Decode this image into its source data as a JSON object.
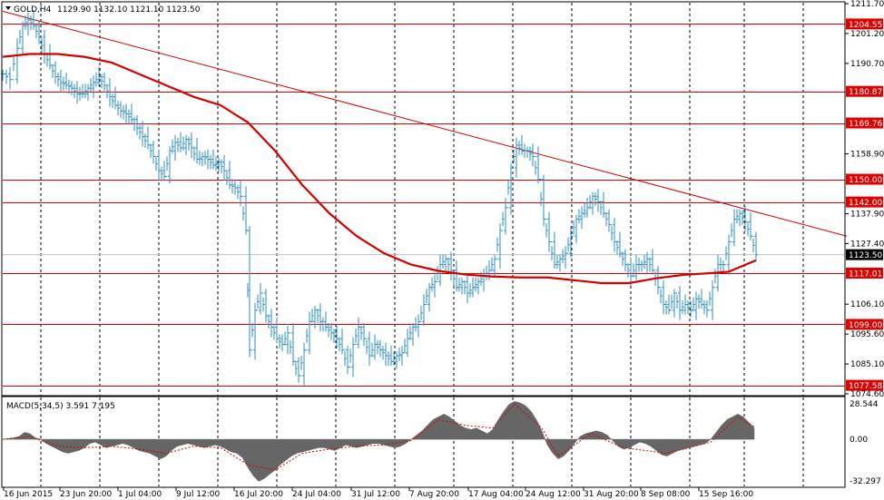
{
  "chart_window": {
    "symbol_label": "GOLD,H4",
    "ohlc": "1129.90 1132.10 1121.10 1123.50",
    "collapse_icon": "triangle-down-icon"
  },
  "colors": {
    "candle": "#2f8fc0",
    "ma": "#d40000",
    "level": "#e00000",
    "trendline": "#d40000",
    "grid": "#000000",
    "histogram": "#666666",
    "signal": "#d40000",
    "tag_bg": "#e00000",
    "tag_text": "#ffffff",
    "price_tag_bg": "#000000"
  },
  "macd": {
    "label": "MACD(5,34,5) 3.591 7.195",
    "axis_labels": [
      "28.544",
      "0.00",
      "-32.297"
    ]
  },
  "chart_data": {
    "type": "line",
    "title": "GOLD,H4",
    "price_axis_labels": [
      "1211.70",
      "1201.20",
      "1190.70",
      "1180.87",
      "1169.76",
      "1158.90",
      "1150.00",
      "1142.00",
      "1137.90",
      "1127.40",
      "1123.50",
      "1117.01",
      "1106.10",
      "1099.00",
      "1095.60",
      "1085.10",
      "1077.58",
      "1074.60"
    ],
    "ylim": [
      1074.6,
      1211.7
    ],
    "levels": [
      {
        "label": "1204.55",
        "value": 1204.55
      },
      {
        "label": "1180.87",
        "value": 1180.87
      },
      {
        "label": "1169.76",
        "value": 1169.76
      },
      {
        "label": "1150.00",
        "value": 1150.0
      },
      {
        "label": "1142.00",
        "value": 1142.0
      },
      {
        "label": "1117.01",
        "value": 1117.01
      },
      {
        "label": "1099.00",
        "value": 1099.0
      },
      {
        "label": "1077.58",
        "value": 1077.58
      }
    ],
    "current_price": {
      "label": "1123.50",
      "value": 1123.5
    },
    "x_labels": [
      "16 Jun 2015",
      "23 Jun 20:00",
      "1 Jul 04:00",
      "9 Jul 12:00",
      "16 Jul 20:00",
      "24 Jul 04:00",
      "31 Jul 12:00",
      "7 Aug 20:00",
      "17 Aug 04:00",
      "24 Aug 12:00",
      "31 Aug 20:00",
      "8 Sep 08:00",
      "15 Sep 16:00"
    ],
    "close_path": [
      [
        0,
        1187
      ],
      [
        8,
        1185
      ],
      [
        16,
        1196
      ],
      [
        22,
        1204
      ],
      [
        28,
        1206
      ],
      [
        34,
        1204
      ],
      [
        40,
        1200
      ],
      [
        46,
        1194
      ],
      [
        52,
        1190
      ],
      [
        58,
        1186
      ],
      [
        64,
        1184
      ],
      [
        70,
        1183
      ],
      [
        76,
        1182
      ],
      [
        82,
        1180
      ],
      [
        88,
        1180
      ],
      [
        94,
        1182
      ],
      [
        100,
        1184
      ],
      [
        106,
        1186
      ],
      [
        112,
        1183
      ],
      [
        118,
        1179
      ],
      [
        124,
        1176
      ],
      [
        130,
        1174
      ],
      [
        136,
        1173
      ],
      [
        142,
        1171
      ],
      [
        148,
        1168
      ],
      [
        154,
        1165
      ],
      [
        160,
        1162
      ],
      [
        166,
        1158
      ],
      [
        172,
        1153
      ],
      [
        178,
        1151
      ],
      [
        184,
        1160
      ],
      [
        190,
        1163
      ],
      [
        196,
        1161
      ],
      [
        202,
        1164
      ],
      [
        208,
        1161
      ],
      [
        214,
        1157
      ],
      [
        220,
        1158
      ],
      [
        226,
        1157
      ],
      [
        232,
        1155
      ],
      [
        238,
        1156
      ],
      [
        244,
        1153
      ],
      [
        250,
        1148
      ],
      [
        256,
        1147
      ],
      [
        262,
        1144
      ],
      [
        268,
        1132
      ],
      [
        272,
        1090
      ],
      [
        278,
        1104
      ],
      [
        284,
        1110
      ],
      [
        290,
        1102
      ],
      [
        296,
        1098
      ],
      [
        302,
        1094
      ],
      [
        308,
        1092
      ],
      [
        314,
        1096
      ],
      [
        320,
        1086
      ],
      [
        326,
        1081
      ],
      [
        332,
        1090
      ],
      [
        338,
        1100
      ],
      [
        344,
        1104
      ],
      [
        350,
        1100
      ],
      [
        356,
        1098
      ],
      [
        362,
        1096
      ],
      [
        368,
        1094
      ],
      [
        374,
        1090
      ],
      [
        380,
        1084
      ],
      [
        386,
        1092
      ],
      [
        392,
        1098
      ],
      [
        398,
        1094
      ],
      [
        404,
        1088
      ],
      [
        410,
        1092
      ],
      [
        416,
        1090
      ],
      [
        422,
        1088
      ],
      [
        428,
        1086
      ],
      [
        434,
        1088
      ],
      [
        440,
        1089
      ],
      [
        446,
        1094
      ],
      [
        452,
        1098
      ],
      [
        458,
        1100
      ],
      [
        464,
        1106
      ],
      [
        470,
        1112
      ],
      [
        476,
        1114
      ],
      [
        482,
        1120
      ],
      [
        488,
        1122
      ],
      [
        494,
        1118
      ],
      [
        500,
        1112
      ],
      [
        506,
        1114
      ],
      [
        512,
        1110
      ],
      [
        518,
        1112
      ],
      [
        524,
        1114
      ],
      [
        530,
        1116
      ],
      [
        536,
        1118
      ],
      [
        542,
        1122
      ],
      [
        548,
        1132
      ],
      [
        554,
        1140
      ],
      [
        560,
        1154
      ],
      [
        566,
        1162
      ],
      [
        572,
        1160
      ],
      [
        578,
        1160
      ],
      [
        584,
        1158
      ],
      [
        590,
        1150
      ],
      [
        596,
        1136
      ],
      [
        602,
        1128
      ],
      [
        608,
        1120
      ],
      [
        614,
        1122
      ],
      [
        620,
        1124
      ],
      [
        626,
        1130
      ],
      [
        632,
        1136
      ],
      [
        638,
        1138
      ],
      [
        644,
        1140
      ],
      [
        650,
        1144
      ],
      [
        656,
        1142
      ],
      [
        662,
        1138
      ],
      [
        668,
        1134
      ],
      [
        674,
        1128
      ],
      [
        680,
        1124
      ],
      [
        686,
        1120
      ],
      [
        692,
        1116
      ],
      [
        698,
        1120
      ],
      [
        704,
        1120
      ],
      [
        710,
        1122
      ],
      [
        716,
        1118
      ],
      [
        722,
        1112
      ],
      [
        728,
        1106
      ],
      [
        734,
        1104
      ],
      [
        740,
        1110
      ],
      [
        746,
        1104
      ],
      [
        752,
        1106
      ],
      [
        758,
        1104
      ],
      [
        764,
        1108
      ],
      [
        770,
        1106
      ],
      [
        776,
        1104
      ],
      [
        782,
        1112
      ],
      [
        788,
        1120
      ],
      [
        794,
        1120
      ],
      [
        800,
        1128
      ],
      [
        806,
        1136
      ],
      [
        812,
        1138
      ],
      [
        818,
        1135
      ],
      [
        824,
        1130
      ],
      [
        830,
        1123.5
      ]
    ],
    "ma_path": [
      [
        0,
        1193
      ],
      [
        30,
        1194
      ],
      [
        60,
        1194
      ],
      [
        90,
        1193
      ],
      [
        120,
        1191
      ],
      [
        150,
        1187
      ],
      [
        180,
        1183
      ],
      [
        210,
        1179
      ],
      [
        240,
        1176
      ],
      [
        270,
        1170
      ],
      [
        300,
        1160
      ],
      [
        330,
        1148
      ],
      [
        360,
        1138
      ],
      [
        390,
        1130
      ],
      [
        420,
        1124
      ],
      [
        450,
        1120
      ],
      [
        480,
        1117.8
      ],
      [
        510,
        1116.5
      ],
      [
        540,
        1115.8
      ],
      [
        570,
        1115.5
      ],
      [
        600,
        1115.5
      ],
      [
        630,
        1114.5
      ],
      [
        660,
        1113.5
      ],
      [
        690,
        1113.5
      ],
      [
        720,
        1115.2
      ],
      [
        750,
        1116.4
      ],
      [
        780,
        1117
      ],
      [
        800,
        1117.5
      ],
      [
        830,
        1121.5
      ]
    ],
    "trendline": [
      [
        0,
        1209
      ],
      [
        930,
        1130
      ]
    ],
    "macd_hist": [
      [
        0,
        0
      ],
      [
        12,
        1
      ],
      [
        18,
        2
      ],
      [
        24,
        5
      ],
      [
        30,
        4
      ],
      [
        36,
        1
      ],
      [
        42,
        0
      ],
      [
        48,
        -3
      ],
      [
        54,
        -5
      ],
      [
        60,
        -7
      ],
      [
        66,
        -9
      ],
      [
        72,
        -10
      ],
      [
        78,
        -9
      ],
      [
        84,
        -8
      ],
      [
        90,
        -6
      ],
      [
        96,
        -3
      ],
      [
        102,
        -2
      ],
      [
        108,
        -4
      ],
      [
        114,
        -6
      ],
      [
        120,
        -5
      ],
      [
        126,
        -4
      ],
      [
        132,
        -3
      ],
      [
        138,
        -4
      ],
      [
        144,
        -6
      ],
      [
        150,
        -8
      ],
      [
        156,
        -9
      ],
      [
        162,
        -10
      ],
      [
        168,
        -12
      ],
      [
        174,
        -14
      ],
      [
        180,
        -12
      ],
      [
        186,
        -8
      ],
      [
        192,
        -5
      ],
      [
        198,
        -4
      ],
      [
        204,
        -3
      ],
      [
        210,
        -4
      ],
      [
        216,
        -5
      ],
      [
        222,
        -6
      ],
      [
        228,
        -5
      ],
      [
        234,
        -4
      ],
      [
        240,
        -5
      ],
      [
        246,
        -7
      ],
      [
        252,
        -9
      ],
      [
        258,
        -10
      ],
      [
        264,
        -13
      ],
      [
        270,
        -20
      ],
      [
        276,
        -26
      ],
      [
        282,
        -30
      ],
      [
        288,
        -28
      ],
      [
        294,
        -25
      ],
      [
        300,
        -22
      ],
      [
        306,
        -18
      ],
      [
        312,
        -15
      ],
      [
        318,
        -12
      ],
      [
        324,
        -10
      ],
      [
        330,
        -9
      ],
      [
        336,
        -8
      ],
      [
        342,
        -7
      ],
      [
        348,
        -6
      ],
      [
        354,
        -6
      ],
      [
        360,
        -7
      ],
      [
        366,
        -8
      ],
      [
        372,
        -6
      ],
      [
        378,
        -4
      ],
      [
        384,
        -5
      ],
      [
        390,
        -6
      ],
      [
        396,
        -5
      ],
      [
        402,
        -4
      ],
      [
        408,
        -3
      ],
      [
        414,
        -3
      ],
      [
        420,
        -4
      ],
      [
        426,
        -5
      ],
      [
        432,
        -6
      ],
      [
        438,
        -5
      ],
      [
        444,
        -3
      ],
      [
        450,
        0
      ],
      [
        456,
        3
      ],
      [
        462,
        6
      ],
      [
        468,
        10
      ],
      [
        474,
        14
      ],
      [
        480,
        16
      ],
      [
        486,
        18
      ],
      [
        492,
        16
      ],
      [
        498,
        13
      ],
      [
        504,
        10
      ],
      [
        510,
        8
      ],
      [
        516,
        7
      ],
      [
        522,
        8
      ],
      [
        528,
        6
      ],
      [
        534,
        4
      ],
      [
        540,
        7
      ],
      [
        546,
        14
      ],
      [
        552,
        20
      ],
      [
        558,
        25
      ],
      [
        564,
        27
      ],
      [
        570,
        26
      ],
      [
        576,
        24
      ],
      [
        582,
        20
      ],
      [
        588,
        14
      ],
      [
        594,
        6
      ],
      [
        600,
        -4
      ],
      [
        606,
        -10
      ],
      [
        612,
        -14
      ],
      [
        618,
        -12
      ],
      [
        624,
        -8
      ],
      [
        630,
        -3
      ],
      [
        636,
        2
      ],
      [
        642,
        4
      ],
      [
        648,
        5
      ],
      [
        654,
        6
      ],
      [
        660,
        5
      ],
      [
        666,
        3
      ],
      [
        672,
        -1
      ],
      [
        678,
        -5
      ],
      [
        684,
        -7
      ],
      [
        690,
        -6
      ],
      [
        696,
        -4
      ],
      [
        702,
        -2
      ],
      [
        708,
        -3
      ],
      [
        714,
        -5
      ],
      [
        720,
        -8
      ],
      [
        726,
        -11
      ],
      [
        732,
        -12
      ],
      [
        738,
        -10
      ],
      [
        744,
        -8
      ],
      [
        750,
        -7
      ],
      [
        756,
        -6
      ],
      [
        762,
        -5
      ],
      [
        768,
        -4
      ],
      [
        774,
        -3
      ],
      [
        780,
        0
      ],
      [
        786,
        5
      ],
      [
        792,
        10
      ],
      [
        798,
        14
      ],
      [
        804,
        16
      ],
      [
        810,
        18
      ],
      [
        816,
        16
      ],
      [
        822,
        12
      ],
      [
        828,
        8
      ]
    ],
    "macd_signal": [
      [
        0,
        0
      ],
      [
        30,
        2
      ],
      [
        60,
        -5
      ],
      [
        90,
        -6
      ],
      [
        120,
        -5
      ],
      [
        150,
        -7
      ],
      [
        180,
        -10
      ],
      [
        210,
        -5
      ],
      [
        240,
        -6
      ],
      [
        270,
        -18
      ],
      [
        300,
        -22
      ],
      [
        330,
        -10
      ],
      [
        360,
        -7
      ],
      [
        390,
        -5
      ],
      [
        420,
        -4
      ],
      [
        450,
        -1
      ],
      [
        480,
        14
      ],
      [
        510,
        10
      ],
      [
        540,
        8
      ],
      [
        564,
        25
      ],
      [
        594,
        8
      ],
      [
        612,
        -12
      ],
      [
        648,
        4
      ],
      [
        684,
        -6
      ],
      [
        732,
        -10
      ],
      [
        780,
        -2
      ],
      [
        810,
        16
      ],
      [
        828,
        9
      ]
    ],
    "macd_ylim": [
      -32.297,
      28.544
    ]
  }
}
